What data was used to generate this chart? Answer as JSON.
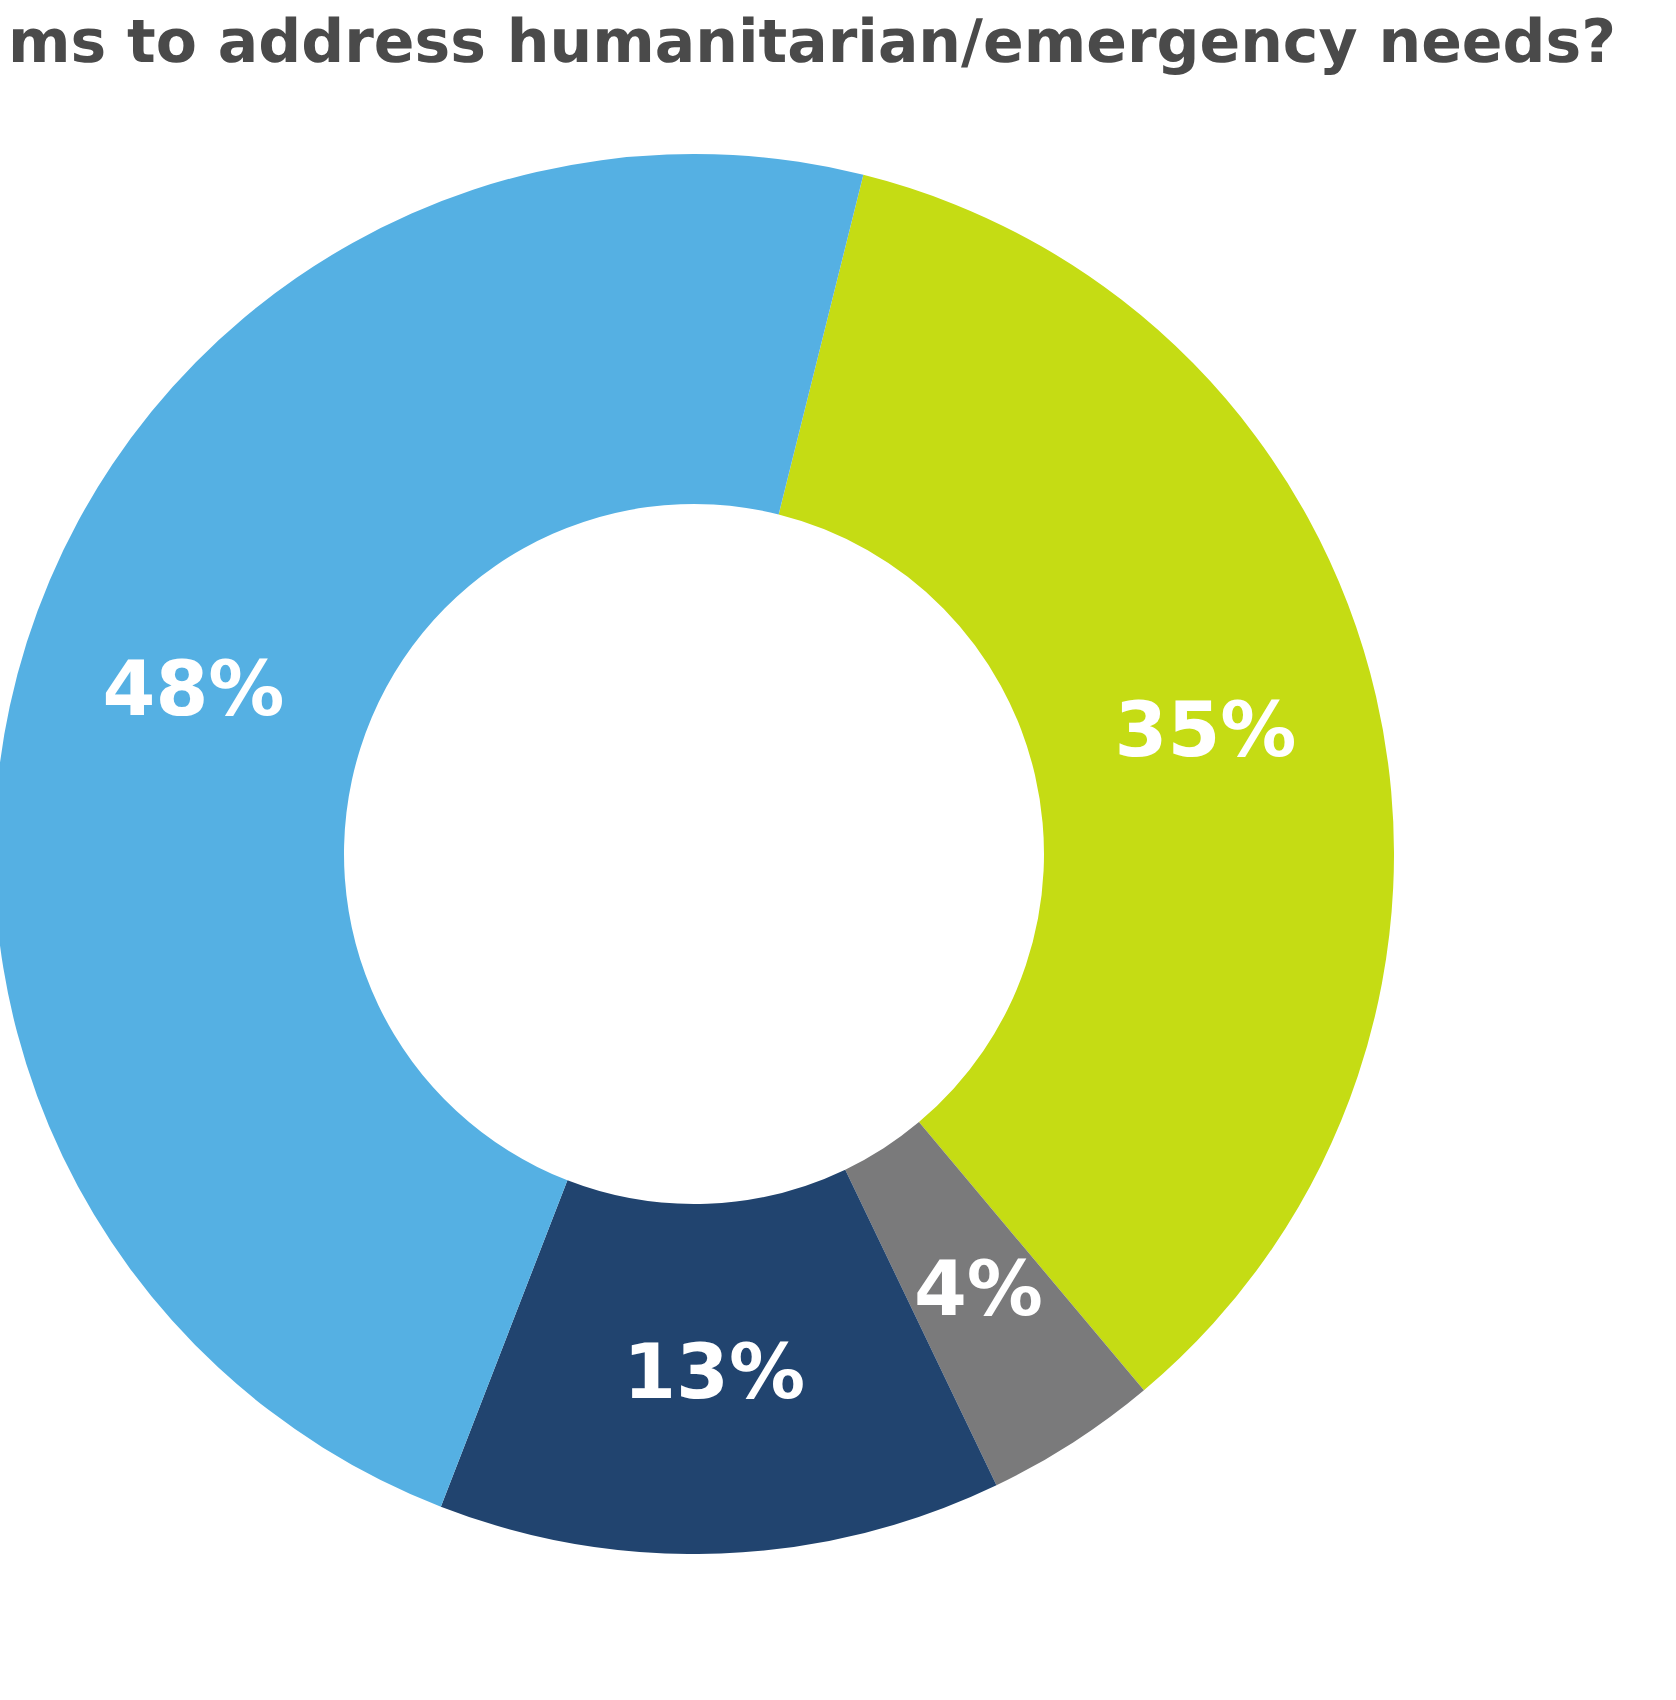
{
  "chart_data": {
    "type": "donut",
    "title": "ms to address humanitarian/emergency needs?",
    "categories": [
      null,
      null,
      null,
      null
    ],
    "values": [
      35,
      4,
      13,
      48
    ],
    "colors": [
      "#c5dc14",
      "#7a7a7b",
      "#21446f",
      "#55b0e3"
    ],
    "value_labels": [
      "35%",
      "4%",
      "13%",
      "48%"
    ],
    "legend": false
  }
}
